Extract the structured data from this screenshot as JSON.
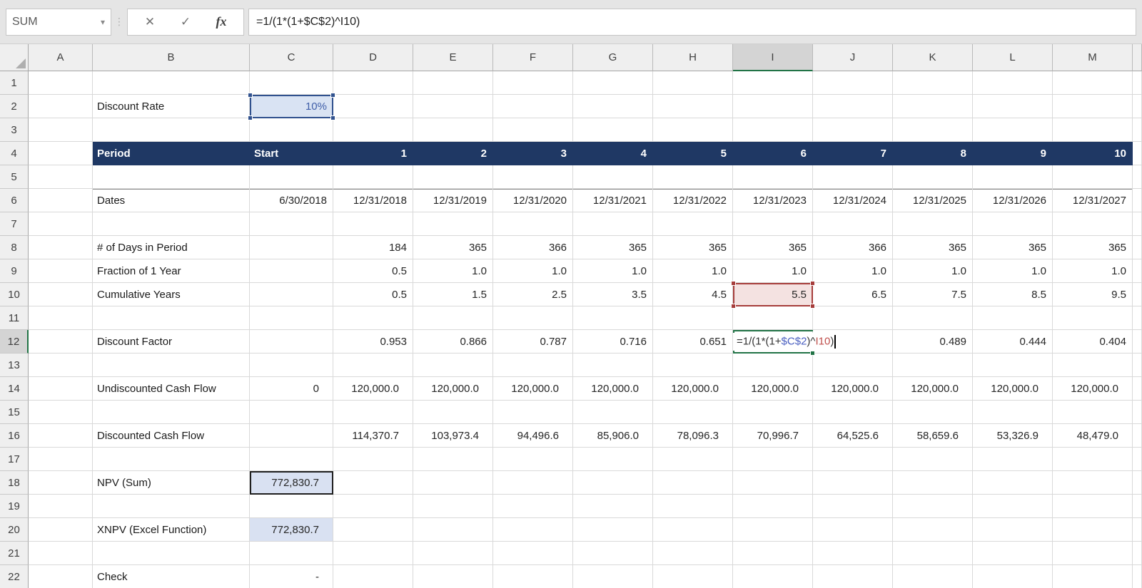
{
  "formula_bar": {
    "name_box_value": "SUM",
    "formula": "=1/(1*(1+$C$2)^I10)",
    "icons": {
      "dropdown": "▾",
      "separator": "⋮",
      "cancel": "✕",
      "enter": "✓",
      "insert_function": "fx"
    }
  },
  "sheet": {
    "column_headers": [
      "A",
      "B",
      "C",
      "D",
      "E",
      "F",
      "G",
      "H",
      "I",
      "J",
      "K",
      "L",
      "M"
    ],
    "row_count": 22,
    "selected_column": "I",
    "active_row": 12,
    "edit_cell": {
      "ref": "I12",
      "formula_parts": [
        {
          "t": "=1/(1*(1+",
          "c": "k"
        },
        {
          "t": "$C$2",
          "c": "b"
        },
        {
          "t": ")^",
          "c": "k"
        },
        {
          "t": "I10",
          "c": "r"
        },
        {
          "t": ")",
          "c": "k"
        }
      ]
    },
    "cells": [
      {
        "r": 2,
        "c": "B",
        "v": "Discount Rate",
        "s": "label"
      },
      {
        "r": 2,
        "c": "C",
        "v": "10%",
        "s": "num bluetext refblue"
      },
      {
        "r": 4,
        "c": "B",
        "v": "Period",
        "s": "label navy"
      },
      {
        "r": 4,
        "c": "C",
        "v": "Start",
        "s": "label navy"
      },
      {
        "r": 4,
        "c": "D",
        "v": "1",
        "s": "num navy"
      },
      {
        "r": 4,
        "c": "E",
        "v": "2",
        "s": "num navy"
      },
      {
        "r": 4,
        "c": "F",
        "v": "3",
        "s": "num navy"
      },
      {
        "r": 4,
        "c": "G",
        "v": "4",
        "s": "num navy"
      },
      {
        "r": 4,
        "c": "H",
        "v": "5",
        "s": "num navy"
      },
      {
        "r": 4,
        "c": "I",
        "v": "6",
        "s": "num navy"
      },
      {
        "r": 4,
        "c": "J",
        "v": "7",
        "s": "num navy"
      },
      {
        "r": 4,
        "c": "K",
        "v": "8",
        "s": "num navy"
      },
      {
        "r": 4,
        "c": "L",
        "v": "9",
        "s": "num navy"
      },
      {
        "r": 4,
        "c": "M",
        "v": "10",
        "s": "num navy"
      },
      {
        "r": 6,
        "c": "B",
        "v": "Dates",
        "s": "label bt"
      },
      {
        "r": 6,
        "c": "C",
        "v": "6/30/2018",
        "s": "num bt"
      },
      {
        "r": 6,
        "c": "D",
        "v": "12/31/2018",
        "s": "num bt"
      },
      {
        "r": 6,
        "c": "E",
        "v": "12/31/2019",
        "s": "num bt"
      },
      {
        "r": 6,
        "c": "F",
        "v": "12/31/2020",
        "s": "num bt"
      },
      {
        "r": 6,
        "c": "G",
        "v": "12/31/2021",
        "s": "num bt"
      },
      {
        "r": 6,
        "c": "H",
        "v": "12/31/2022",
        "s": "num bt"
      },
      {
        "r": 6,
        "c": "I",
        "v": "12/31/2023",
        "s": "num bt"
      },
      {
        "r": 6,
        "c": "J",
        "v": "12/31/2024",
        "s": "num bt"
      },
      {
        "r": 6,
        "c": "K",
        "v": "12/31/2025",
        "s": "num bt"
      },
      {
        "r": 6,
        "c": "L",
        "v": "12/31/2026",
        "s": "num bt"
      },
      {
        "r": 6,
        "c": "M",
        "v": "12/31/2027",
        "s": "num bt"
      },
      {
        "r": 8,
        "c": "B",
        "v": "# of Days in Period",
        "s": "label"
      },
      {
        "r": 8,
        "c": "D",
        "v": "184",
        "s": "num"
      },
      {
        "r": 8,
        "c": "E",
        "v": "365",
        "s": "num"
      },
      {
        "r": 8,
        "c": "F",
        "v": "366",
        "s": "num"
      },
      {
        "r": 8,
        "c": "G",
        "v": "365",
        "s": "num"
      },
      {
        "r": 8,
        "c": "H",
        "v": "365",
        "s": "num"
      },
      {
        "r": 8,
        "c": "I",
        "v": "365",
        "s": "num"
      },
      {
        "r": 8,
        "c": "J",
        "v": "366",
        "s": "num"
      },
      {
        "r": 8,
        "c": "K",
        "v": "365",
        "s": "num"
      },
      {
        "r": 8,
        "c": "L",
        "v": "365",
        "s": "num"
      },
      {
        "r": 8,
        "c": "M",
        "v": "365",
        "s": "num"
      },
      {
        "r": 9,
        "c": "B",
        "v": "Fraction of 1 Year",
        "s": "label"
      },
      {
        "r": 9,
        "c": "D",
        "v": "0.5",
        "s": "num"
      },
      {
        "r": 9,
        "c": "E",
        "v": "1.0",
        "s": "num"
      },
      {
        "r": 9,
        "c": "F",
        "v": "1.0",
        "s": "num"
      },
      {
        "r": 9,
        "c": "G",
        "v": "1.0",
        "s": "num"
      },
      {
        "r": 9,
        "c": "H",
        "v": "1.0",
        "s": "num"
      },
      {
        "r": 9,
        "c": "I",
        "v": "1.0",
        "s": "num"
      },
      {
        "r": 9,
        "c": "J",
        "v": "1.0",
        "s": "num"
      },
      {
        "r": 9,
        "c": "K",
        "v": "1.0",
        "s": "num"
      },
      {
        "r": 9,
        "c": "L",
        "v": "1.0",
        "s": "num"
      },
      {
        "r": 9,
        "c": "M",
        "v": "1.0",
        "s": "num"
      },
      {
        "r": 10,
        "c": "B",
        "v": "Cumulative Years",
        "s": "label"
      },
      {
        "r": 10,
        "c": "D",
        "v": "0.5",
        "s": "num"
      },
      {
        "r": 10,
        "c": "E",
        "v": "1.5",
        "s": "num"
      },
      {
        "r": 10,
        "c": "F",
        "v": "2.5",
        "s": "num"
      },
      {
        "r": 10,
        "c": "G",
        "v": "3.5",
        "s": "num"
      },
      {
        "r": 10,
        "c": "H",
        "v": "4.5",
        "s": "num"
      },
      {
        "r": 10,
        "c": "I",
        "v": "5.5",
        "s": "num refred"
      },
      {
        "r": 10,
        "c": "J",
        "v": "6.5",
        "s": "num"
      },
      {
        "r": 10,
        "c": "K",
        "v": "7.5",
        "s": "num"
      },
      {
        "r": 10,
        "c": "L",
        "v": "8.5",
        "s": "num"
      },
      {
        "r": 10,
        "c": "M",
        "v": "9.5",
        "s": "num"
      },
      {
        "r": 12,
        "c": "B",
        "v": "Discount Factor",
        "s": "label"
      },
      {
        "r": 12,
        "c": "D",
        "v": "0.953",
        "s": "num"
      },
      {
        "r": 12,
        "c": "E",
        "v": "0.866",
        "s": "num"
      },
      {
        "r": 12,
        "c": "F",
        "v": "0.787",
        "s": "num"
      },
      {
        "r": 12,
        "c": "G",
        "v": "0.716",
        "s": "num"
      },
      {
        "r": 12,
        "c": "H",
        "v": "0.651",
        "s": "num"
      },
      {
        "r": 12,
        "c": "I",
        "v": "",
        "s": "edit"
      },
      {
        "r": 12,
        "c": "K",
        "v": "0.489",
        "s": "num"
      },
      {
        "r": 12,
        "c": "L",
        "v": "0.444",
        "s": "num"
      },
      {
        "r": 12,
        "c": "M",
        "v": "0.404",
        "s": "num"
      },
      {
        "r": 14,
        "c": "B",
        "v": "Undiscounted Cash Flow",
        "s": "label"
      },
      {
        "r": 14,
        "c": "C",
        "v": "0",
        "s": "acct"
      },
      {
        "r": 14,
        "c": "D",
        "v": "120,000.0",
        "s": "acct"
      },
      {
        "r": 14,
        "c": "E",
        "v": "120,000.0",
        "s": "acct"
      },
      {
        "r": 14,
        "c": "F",
        "v": "120,000.0",
        "s": "acct"
      },
      {
        "r": 14,
        "c": "G",
        "v": "120,000.0",
        "s": "acct"
      },
      {
        "r": 14,
        "c": "H",
        "v": "120,000.0",
        "s": "acct"
      },
      {
        "r": 14,
        "c": "I",
        "v": "120,000.0",
        "s": "acct"
      },
      {
        "r": 14,
        "c": "J",
        "v": "120,000.0",
        "s": "acct"
      },
      {
        "r": 14,
        "c": "K",
        "v": "120,000.0",
        "s": "acct"
      },
      {
        "r": 14,
        "c": "L",
        "v": "120,000.0",
        "s": "acct"
      },
      {
        "r": 14,
        "c": "M",
        "v": "120,000.0",
        "s": "acct"
      },
      {
        "r": 16,
        "c": "B",
        "v": "Discounted Cash Flow",
        "s": "label"
      },
      {
        "r": 16,
        "c": "D",
        "v": "114,370.7",
        "s": "acct"
      },
      {
        "r": 16,
        "c": "E",
        "v": "103,973.4",
        "s": "acct"
      },
      {
        "r": 16,
        "c": "F",
        "v": "94,496.6",
        "s": "acct"
      },
      {
        "r": 16,
        "c": "G",
        "v": "85,906.0",
        "s": "acct"
      },
      {
        "r": 16,
        "c": "H",
        "v": "78,096.3",
        "s": "acct"
      },
      {
        "r": 16,
        "c": "I",
        "v": "70,996.7",
        "s": "acct"
      },
      {
        "r": 16,
        "c": "J",
        "v": "64,525.6",
        "s": "acct"
      },
      {
        "r": 16,
        "c": "K",
        "v": "58,659.6",
        "s": "acct"
      },
      {
        "r": 16,
        "c": "L",
        "v": "53,326.9",
        "s": "acct"
      },
      {
        "r": 16,
        "c": "M",
        "v": "48,479.0",
        "s": "acct"
      },
      {
        "r": 18,
        "c": "B",
        "v": "NPV (Sum)",
        "s": "label"
      },
      {
        "r": 18,
        "c": "C",
        "v": "772,830.7",
        "s": "acct npv"
      },
      {
        "r": 20,
        "c": "B",
        "v": "XNPV (Excel Function)",
        "s": "label"
      },
      {
        "r": 20,
        "c": "C",
        "v": "772,830.7",
        "s": "acct xnpv"
      },
      {
        "r": 22,
        "c": "B",
        "v": "Check",
        "s": "label"
      },
      {
        "r": 22,
        "c": "C",
        "v": "-",
        "s": "acct"
      }
    ]
  }
}
